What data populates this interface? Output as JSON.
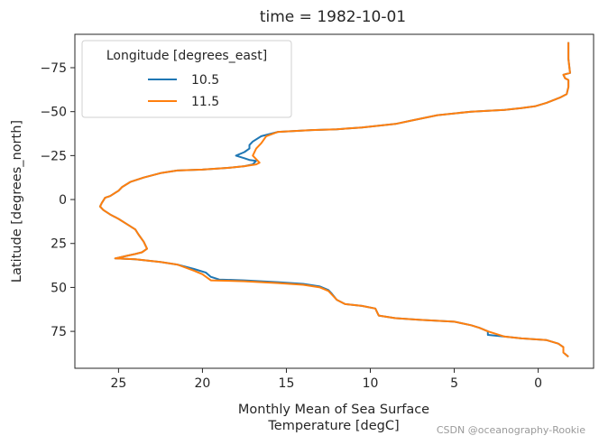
{
  "chart_data": {
    "type": "line",
    "title": "time = 1982-10-01",
    "xlabel_lines": [
      "Monthly Mean of Sea Surface",
      "Temperature [degC]"
    ],
    "ylabel": "Latitude [degrees_north]",
    "xlim": [
      27.6,
      -3.3
    ],
    "ylim": [
      -94,
      96
    ],
    "x_ticks": [
      25,
      20,
      15,
      10,
      5,
      0
    ],
    "y_ticks": [
      -75,
      -50,
      -25,
      0,
      25,
      50,
      75
    ],
    "legend": {
      "title": "Longitude [degrees_east]",
      "placement": "upper-left"
    },
    "series": [
      {
        "name": "10.5",
        "color": "#1f77b4",
        "points": [
          [
            -1.8,
            -89.5
          ],
          [
            -1.8,
            -80
          ],
          [
            -1.9,
            -72
          ],
          [
            -1.5,
            -71
          ],
          [
            -1.6,
            -69
          ],
          [
            -1.8,
            -68
          ],
          [
            -1.8,
            -64
          ],
          [
            -1.7,
            -60
          ],
          [
            -1.3,
            -58
          ],
          [
            -0.5,
            -55
          ],
          [
            0.2,
            -53
          ],
          [
            1,
            -52
          ],
          [
            2,
            -51
          ],
          [
            4,
            -50
          ],
          [
            6,
            -48
          ],
          [
            7.5,
            -45
          ],
          [
            8.5,
            -43
          ],
          [
            9.5,
            -42
          ],
          [
            10.5,
            -41
          ],
          [
            12,
            -40
          ],
          [
            13.5,
            -39.5
          ],
          [
            15.5,
            -38.5
          ],
          [
            16.5,
            -36
          ],
          [
            17,
            -33
          ],
          [
            17.2,
            -31
          ],
          [
            17.2,
            -29
          ],
          [
            17.5,
            -27
          ],
          [
            18,
            -25
          ],
          [
            17.5,
            -23.5
          ],
          [
            17.2,
            -22.5
          ],
          [
            16.8,
            -22
          ],
          [
            17,
            -20
          ],
          [
            17.5,
            -19
          ],
          [
            18.5,
            -18
          ],
          [
            20,
            -17
          ],
          [
            21.5,
            -16.5
          ],
          [
            22.5,
            -15
          ],
          [
            23.5,
            -12.5
          ],
          [
            24.3,
            -10
          ],
          [
            24.8,
            -7
          ],
          [
            25,
            -5
          ],
          [
            25.5,
            -2
          ],
          [
            25.8,
            -1
          ],
          [
            26,
            2
          ],
          [
            26.1,
            4
          ],
          [
            25.9,
            6
          ],
          [
            25.5,
            8.5
          ],
          [
            25,
            11
          ],
          [
            24.5,
            14
          ],
          [
            24,
            17
          ],
          [
            23.8,
            20
          ],
          [
            23.5,
            24
          ],
          [
            23.3,
            28
          ],
          [
            23.6,
            30
          ],
          [
            24,
            31
          ],
          [
            24.5,
            32
          ],
          [
            25.2,
            33.5
          ],
          [
            24,
            34
          ],
          [
            22.5,
            35.5
          ],
          [
            21.5,
            37
          ],
          [
            20.5,
            39.5
          ],
          [
            19.8,
            41.5
          ],
          [
            19.5,
            44
          ],
          [
            19,
            45.5
          ],
          [
            17.5,
            46
          ],
          [
            15.5,
            47
          ],
          [
            14,
            48
          ],
          [
            13,
            49.5
          ],
          [
            12.5,
            51.5
          ],
          [
            12.3,
            53.5
          ],
          [
            12,
            57
          ],
          [
            11.5,
            59.5
          ],
          [
            10.5,
            60.5
          ],
          [
            9.7,
            62
          ],
          [
            9.5,
            66
          ],
          [
            8.5,
            67.5
          ],
          [
            7,
            68.5
          ],
          [
            5,
            69.5
          ],
          [
            4,
            71.5
          ],
          [
            3.5,
            73
          ],
          [
            3,
            75
          ],
          [
            3,
            77
          ],
          [
            2,
            78
          ],
          [
            1,
            79
          ],
          [
            -0.5,
            80
          ],
          [
            -1.2,
            82
          ],
          [
            -1.5,
            84
          ],
          [
            -1.5,
            85
          ],
          [
            -1.5,
            87
          ],
          [
            -1.8,
            89.5
          ]
        ]
      },
      {
        "name": "11.5",
        "color": "#ff7f0e",
        "points": [
          [
            -1.8,
            -89.5
          ],
          [
            -1.8,
            -80
          ],
          [
            -1.9,
            -72
          ],
          [
            -1.5,
            -71
          ],
          [
            -1.6,
            -69
          ],
          [
            -1.8,
            -68
          ],
          [
            -1.8,
            -64
          ],
          [
            -1.7,
            -60
          ],
          [
            -1.3,
            -58
          ],
          [
            -0.5,
            -55
          ],
          [
            0.2,
            -53
          ],
          [
            1,
            -52
          ],
          [
            2,
            -51
          ],
          [
            4,
            -50
          ],
          [
            6,
            -48
          ],
          [
            7.5,
            -45
          ],
          [
            8.5,
            -43
          ],
          [
            9.5,
            -42
          ],
          [
            10.5,
            -41
          ],
          [
            12,
            -40
          ],
          [
            13.5,
            -39.5
          ],
          [
            15.5,
            -38.5
          ],
          [
            16.2,
            -36
          ],
          [
            16.5,
            -32
          ],
          [
            16.8,
            -29
          ],
          [
            17,
            -25
          ],
          [
            16.6,
            -21
          ],
          [
            16.8,
            -20
          ],
          [
            17.5,
            -19
          ],
          [
            18.5,
            -18
          ],
          [
            20,
            -17
          ],
          [
            21.5,
            -16.5
          ],
          [
            22.5,
            -15
          ],
          [
            23.5,
            -12.5
          ],
          [
            24.3,
            -10
          ],
          [
            24.8,
            -7
          ],
          [
            25,
            -5
          ],
          [
            25.5,
            -2
          ],
          [
            25.8,
            -1
          ],
          [
            26,
            2
          ],
          [
            26.1,
            4
          ],
          [
            25.9,
            6
          ],
          [
            25.5,
            8.5
          ],
          [
            25,
            11
          ],
          [
            24.5,
            14
          ],
          [
            24,
            17
          ],
          [
            23.8,
            20
          ],
          [
            23.5,
            24
          ],
          [
            23.3,
            28
          ],
          [
            23.6,
            30
          ],
          [
            24,
            31
          ],
          [
            24.5,
            32
          ],
          [
            25.2,
            33.5
          ],
          [
            24,
            34
          ],
          [
            22.5,
            35.5
          ],
          [
            21.5,
            37
          ],
          [
            20.5,
            40.5
          ],
          [
            20,
            42.5
          ],
          [
            19.5,
            46
          ],
          [
            17.5,
            46.5
          ],
          [
            15.5,
            47.5
          ],
          [
            14,
            48.5
          ],
          [
            13,
            50
          ],
          [
            12.5,
            52
          ],
          [
            12.3,
            54
          ],
          [
            12,
            57
          ],
          [
            11.5,
            59.5
          ],
          [
            10.5,
            60.5
          ],
          [
            9.7,
            62
          ],
          [
            9.5,
            66
          ],
          [
            8.5,
            67.5
          ],
          [
            7,
            68.5
          ],
          [
            5,
            69.5
          ],
          [
            4,
            71.5
          ],
          [
            3.5,
            73
          ],
          [
            3,
            75
          ],
          [
            2,
            78
          ],
          [
            1,
            79
          ],
          [
            -0.5,
            80
          ],
          [
            -1.2,
            82
          ],
          [
            -1.5,
            84
          ],
          [
            -1.5,
            85
          ],
          [
            -1.5,
            87
          ],
          [
            -1.8,
            89.5
          ]
        ]
      }
    ]
  },
  "watermark": "CSDN @oceanography-Rookie"
}
